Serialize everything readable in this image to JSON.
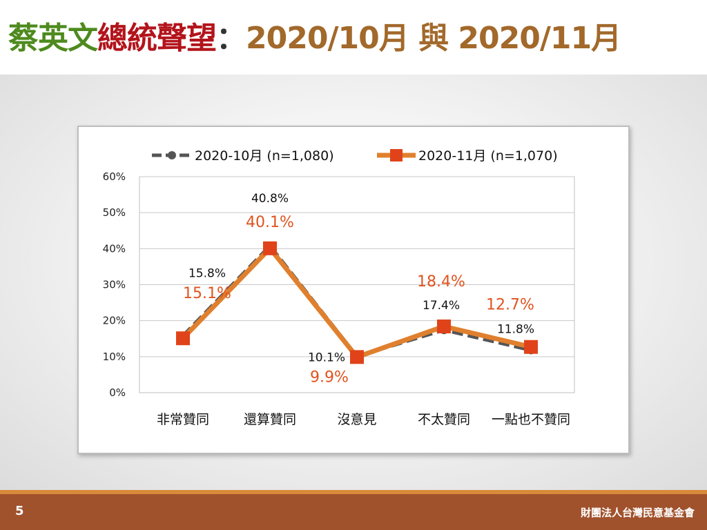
{
  "header": {
    "title_part1": "蔡英文",
    "title_part2": "總統聲望",
    "title_part3": "：",
    "title_part4": "2020/10月 與 2020/11月",
    "colors": {
      "part1": "#4e8a1e",
      "part2": "#b3141c",
      "part3": "#333333",
      "part4": "#a2692b"
    }
  },
  "footer": {
    "page_number": "5",
    "org_name": "財團法人台灣民意基金會"
  },
  "chart_data": {
    "type": "line",
    "categories": [
      "非常贊同",
      "還算贊同",
      "沒意見",
      "不太贊同",
      "一點也不贊同"
    ],
    "series": [
      {
        "name": "2020-10月 (n=1,080)",
        "values": [
          15.8,
          40.8,
          10.1,
          17.4,
          11.8
        ],
        "labels": [
          "15.8%",
          "40.8%",
          "10.1%",
          "17.4%",
          "11.8%"
        ],
        "color": "#555555",
        "style": "dashed",
        "marker": "circle"
      },
      {
        "name": "2020-11月 (n=1,070)",
        "values": [
          15.1,
          40.1,
          9.9,
          18.4,
          12.7
        ],
        "labels": [
          "15.1%",
          "40.1%",
          "9.9%",
          "18.4%",
          "12.7%"
        ],
        "color": "#e0802e",
        "marker_color": "#e0431a",
        "style": "solid",
        "marker": "square"
      }
    ],
    "y_ticks": [
      "0%",
      "10%",
      "20%",
      "30%",
      "40%",
      "50%",
      "60%"
    ],
    "ylim": [
      0,
      60
    ],
    "grid": true,
    "legend_position": "top"
  }
}
